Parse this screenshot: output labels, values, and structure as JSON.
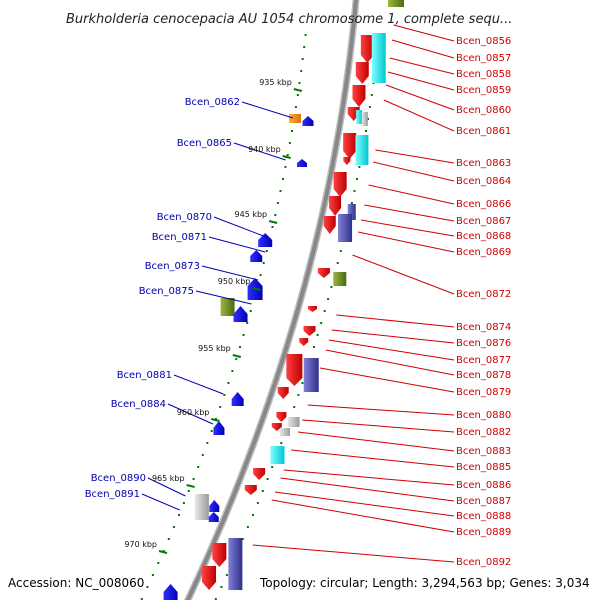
{
  "header": {
    "title": "Burkholderia cenocepacia AU 1054 chromosome 1, complete sequ..."
  },
  "footer": {
    "accession": "Accession: NC_008060",
    "topology": "Topology: circular; Length: 3,294,563 bp; Genes: 3,034"
  },
  "colors": {
    "backbone": "#888888",
    "plus_strand": "#e00000",
    "minus_strand": "#0000ee",
    "label_plus": "#d00000",
    "label_minus": "#0000b0",
    "tick": "#007a00",
    "cyan_feature": "#00e0e0",
    "purple_feature": "#5050b0",
    "olive_feature": "#6a8a20",
    "grey_feature": "#b8b8b8",
    "orange_feature": "#ff8800"
  },
  "kbp_markers": [
    "935 kbp",
    "940 kbp",
    "945 kbp",
    "950 kbp",
    "955 kbp",
    "960 kbp",
    "965 kbp",
    "970 kbp"
  ],
  "genes_right": [
    "Bcen_0856",
    "Bcen_0857",
    "Bcen_0858",
    "Bcen_0859",
    "Bcen_0860",
    "Bcen_0861",
    "Bcen_0863",
    "Bcen_0864",
    "Bcen_0866",
    "Bcen_0867",
    "Bcen_0868",
    "Bcen_0869",
    "Bcen_0872",
    "Bcen_0874",
    "Bcen_0876",
    "Bcen_0877",
    "Bcen_0878",
    "Bcen_0879",
    "Bcen_0880",
    "Bcen_0882",
    "Bcen_0883",
    "Bcen_0885",
    "Bcen_0886",
    "Bcen_0887",
    "Bcen_0888",
    "Bcen_0889",
    "Bcen_0892"
  ],
  "genes_left": [
    "Bcen_0862",
    "Bcen_0865",
    "Bcen_0870",
    "Bcen_0871",
    "Bcen_0873",
    "Bcen_0875",
    "Bcen_0881",
    "Bcen_0884",
    "Bcen_0890",
    "Bcen_0891"
  ]
}
